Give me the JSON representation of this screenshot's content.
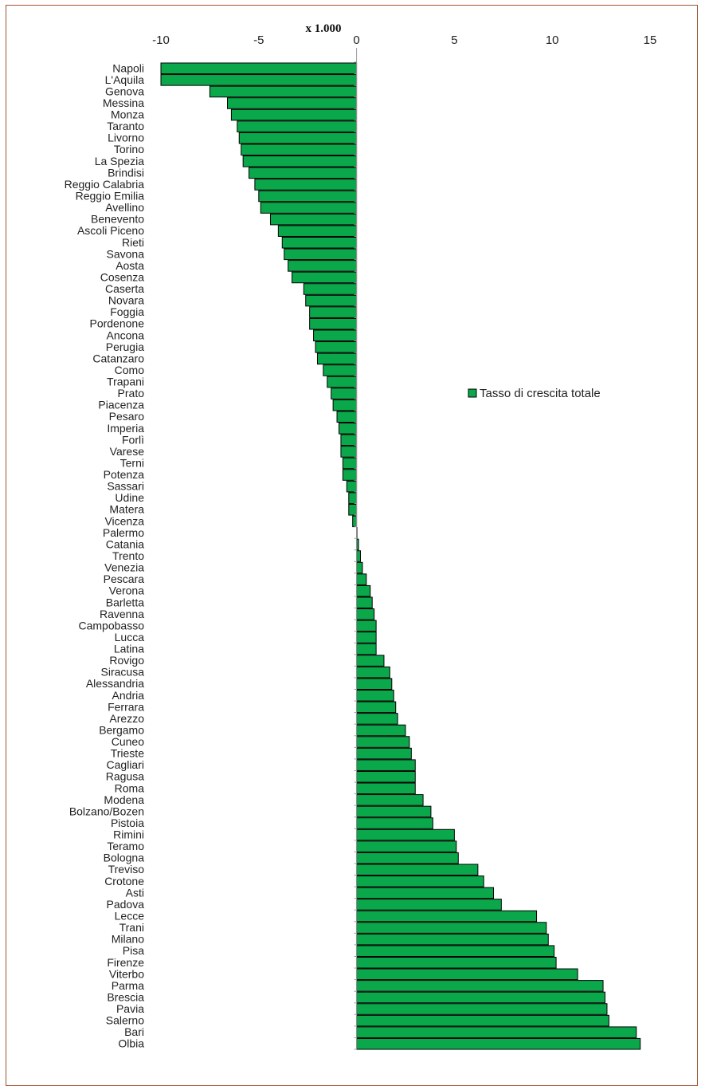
{
  "chart_data": {
    "type": "bar",
    "orientation": "horizontal",
    "title": "",
    "scale_label": "x 1.000",
    "xlim": [
      -10,
      15
    ],
    "x_ticks": [
      -10,
      -5,
      0,
      5,
      10,
      15
    ],
    "grid": false,
    "legend_position": "right",
    "bar_color": "#0aa84a",
    "bar_border": "#000000",
    "categories": [
      "Napoli",
      "L'Aquila",
      "Genova",
      "Messina",
      "Monza",
      "Taranto",
      "Livorno",
      "Torino",
      "La Spezia",
      "Brindisi",
      "Reggio Calabria",
      "Reggio Emilia",
      "Avellino",
      "Benevento",
      "Ascoli Piceno",
      "Rieti",
      "Savona",
      "Aosta",
      "Cosenza",
      "Caserta",
      "Novara",
      "Foggia",
      "Pordenone",
      "Ancona",
      "Perugia",
      "Catanzaro",
      "Como",
      "Trapani",
      "Prato",
      "Piacenza",
      "Pesaro",
      "Imperia",
      "Forlì",
      "Varese",
      "Terni",
      "Potenza",
      "Sassari",
      "Udine",
      "Matera",
      "Vicenza",
      "Palermo",
      "Catania",
      "Trento",
      "Venezia",
      "Pescara",
      "Verona",
      "Barletta",
      "Ravenna",
      "Campobasso",
      "Lucca",
      "Latina",
      "Rovigo",
      "Siracusa",
      "Alessandria",
      "Andria",
      "Ferrara",
      "Arezzo",
      "Bergamo",
      "Cuneo",
      "Trieste",
      "Cagliari",
      "Ragusa",
      "Roma",
      "Modena",
      "Bolzano/Bozen",
      "Pistoia",
      "Rimini",
      "Teramo",
      "Bologna",
      "Treviso",
      "Crotone",
      "Asti",
      "Padova",
      "Lecce",
      "Trani",
      "Milano",
      "Pisa",
      "Firenze",
      "Viterbo",
      "Parma",
      "Brescia",
      "Pavia",
      "Salerno",
      "Bari",
      "Olbia"
    ],
    "series": [
      {
        "name": "Tasso di crescita totale",
        "values": [
          -10.0,
          -10.0,
          -7.5,
          -6.6,
          -6.4,
          -6.1,
          -6.0,
          -5.9,
          -5.8,
          -5.5,
          -5.2,
          -5.0,
          -4.9,
          -4.4,
          -4.0,
          -3.8,
          -3.7,
          -3.5,
          -3.3,
          -2.7,
          -2.6,
          -2.4,
          -2.4,
          -2.2,
          -2.1,
          -2.0,
          -1.7,
          -1.5,
          -1.3,
          -1.2,
          -1.0,
          -0.9,
          -0.8,
          -0.8,
          -0.7,
          -0.7,
          -0.5,
          -0.4,
          -0.4,
          -0.2,
          0.0,
          0.1,
          0.2,
          0.3,
          0.5,
          0.7,
          0.8,
          0.9,
          1.0,
          1.0,
          1.0,
          1.4,
          1.7,
          1.8,
          1.9,
          2.0,
          2.1,
          2.5,
          2.7,
          2.8,
          3.0,
          3.0,
          3.0,
          3.4,
          3.8,
          3.9,
          5.0,
          5.1,
          5.2,
          6.2,
          6.5,
          7.0,
          7.4,
          9.2,
          9.7,
          9.8,
          10.1,
          10.2,
          11.3,
          12.6,
          12.7,
          12.8,
          12.9,
          14.3,
          14.5
        ]
      }
    ]
  }
}
